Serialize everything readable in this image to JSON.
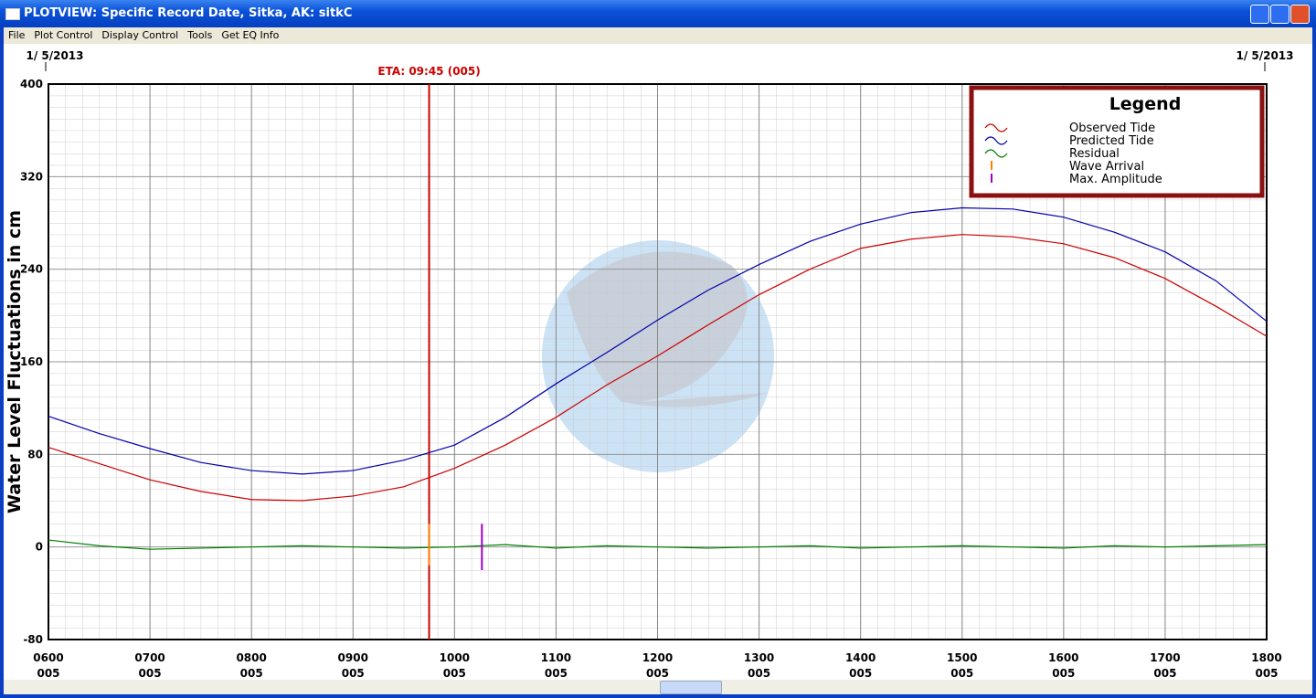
{
  "window": {
    "title": "PLOTVIEW: Specific Record Date, Sitka, AK: sitkC"
  },
  "menu": [
    "File",
    "Plot Control",
    "Display Control",
    "Tools",
    "Get EQ Info"
  ],
  "chart_data": {
    "type": "line",
    "date_left": "1/ 5/2013",
    "date_right": "1/ 5/2013",
    "y_label": "Water Level Fluctuations in cm",
    "annotation": "ETA: 09:45 (005)",
    "eta": 9.75,
    "eta_color": "#cc0000",
    "x": [
      6,
      6.5,
      7,
      7.5,
      8,
      8.5,
      9,
      9.5,
      10,
      10.5,
      11,
      11.5,
      12,
      12.5,
      13,
      13.5,
      14,
      14.5,
      15,
      15.5,
      16,
      16.5,
      17,
      17.5,
      18
    ],
    "series": [
      {
        "name": "Observed Tide",
        "color": "#cc0000",
        "values": [
          86,
          72,
          58,
          48,
          41,
          40,
          44,
          52,
          68,
          88,
          112,
          140,
          165,
          192,
          218,
          240,
          258,
          266,
          270,
          268,
          262,
          250,
          232,
          208,
          182
        ]
      },
      {
        "name": "Predicted Tide",
        "color": "#0000aa",
        "values": [
          113,
          98,
          85,
          73,
          66,
          63,
          66,
          75,
          88,
          112,
          141,
          168,
          196,
          222,
          244,
          264,
          279,
          289,
          293,
          292,
          285,
          272,
          255,
          230,
          195
        ]
      },
      {
        "name": "Residual",
        "color": "#008000",
        "values": [
          6,
          1,
          -2,
          -1,
          0,
          1,
          0,
          -1,
          0,
          2,
          -1,
          1,
          0,
          -1,
          0,
          1,
          -1,
          0,
          1,
          0,
          -1,
          1,
          0,
          1,
          2
        ]
      }
    ],
    "markers": [
      {
        "name": "Wave Arrival",
        "color": "#ff8000",
        "x": 9.75,
        "values": [
          -16,
          20
        ]
      },
      {
        "name": "Max. Amplitude",
        "color": "#a000c0",
        "x": 10.27,
        "values": [
          -20,
          20
        ]
      }
    ],
    "legend_title": "Legend",
    "legend": "upper right",
    "xlim": [
      6,
      18
    ],
    "ylim": [
      -80,
      400
    ],
    "xticks": [
      {
        "value": 6,
        "label": "0600"
      },
      {
        "value": 7,
        "label": "0700"
      },
      {
        "value": 8,
        "label": "0800"
      },
      {
        "value": 9,
        "label": "0900"
      },
      {
        "value": 10,
        "label": "1000"
      },
      {
        "value": 11,
        "label": "1100"
      },
      {
        "value": 12,
        "label": "1200"
      },
      {
        "value": 13,
        "label": "1300"
      },
      {
        "value": 14,
        "label": "1400"
      },
      {
        "value": 15,
        "label": "1500"
      },
      {
        "value": 16,
        "label": "1600"
      },
      {
        "value": 17,
        "label": "1700"
      },
      {
        "value": 18,
        "label": "1800"
      }
    ],
    "xtick_days": [
      "005",
      "005",
      "005",
      "005",
      "005",
      "005",
      "005",
      "005",
      "005",
      "005",
      "005",
      "005",
      "005"
    ],
    "yticks": [
      -80,
      0,
      80,
      160,
      240,
      320,
      400
    ],
    "grid": true
  }
}
